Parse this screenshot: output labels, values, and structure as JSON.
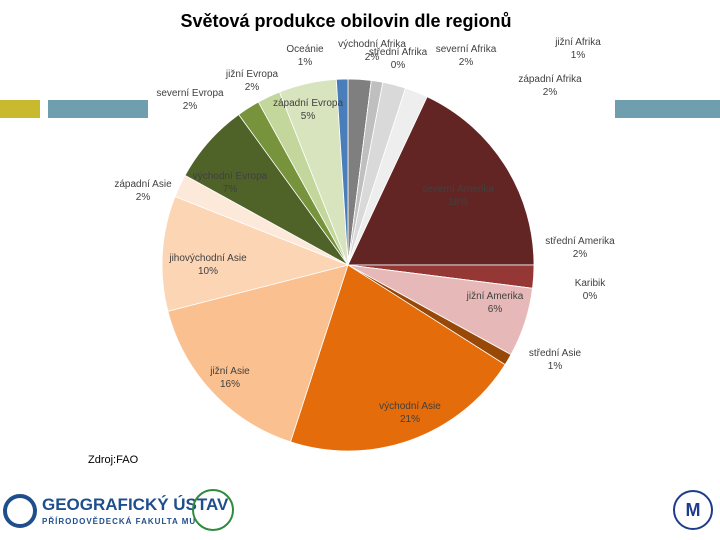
{
  "chart_data": {
    "type": "pie",
    "title": "Světová produkce obilovin dle regionů",
    "categories": [
      "východní Afrika",
      "střední Afrika",
      "jižní Afrika",
      "severní Afrika",
      "západní Afrika",
      "severní Amerika",
      "střední Amerika",
      "Karibik",
      "jižní Amerika",
      "střední Asie",
      "východní Asie",
      "jižní Asie",
      "jihovýchodní Asie",
      "západní Asie",
      "východní Evropa",
      "severní Evropa",
      "jižní Evropa",
      "západní Evropa",
      "Oceánie"
    ],
    "values": [
      2,
      0,
      1,
      2,
      2,
      18,
      2,
      0,
      6,
      1,
      21,
      16,
      10,
      2,
      7,
      2,
      2,
      5,
      1
    ],
    "value_labels": [
      "2%",
      "0%",
      "1%",
      "2%",
      "2%",
      "18%",
      "2%",
      "0%",
      "6%",
      "1%",
      "21%",
      "16%",
      "10%",
      "2%",
      "7%",
      "2%",
      "2%",
      "5%",
      "1%"
    ],
    "colors": [
      "#7f7f7f",
      "#a6a6a6",
      "#bfbfbf",
      "#d9d9d9",
      "#eeeeee",
      "#632523",
      "#953735",
      "#c0504d",
      "#e6b9b8",
      "#984807",
      "#e46c0a",
      "#fac090",
      "#fcd5b5",
      "#fde9d9",
      "#4f6228",
      "#77933c",
      "#c3d69b",
      "#d7e4bd",
      "#4a7ebb"
    ],
    "source": "Zdroj:FAO"
  },
  "logo": {
    "name": "GEOGRAFICKÝ ÚSTAV",
    "faculty": "PŘÍRODOVĚDECKÁ FAKULTA MU"
  }
}
